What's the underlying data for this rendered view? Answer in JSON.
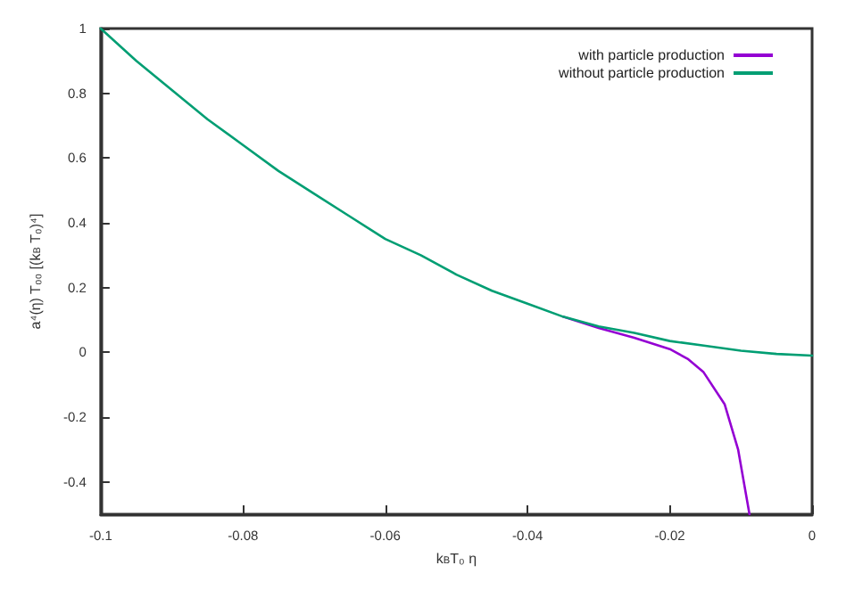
{
  "chart_data": {
    "type": "line",
    "xlabel": "k$_{B}$T₀ η",
    "ylabel": "a⁴(η) T₀₀ [(k$_{B}$ T₀)⁴]",
    "xlim": [
      -0.1,
      0
    ],
    "xticks": [
      -0.1,
      -0.08,
      -0.06,
      -0.04,
      -0.02,
      0
    ],
    "ylim": [
      -0.5,
      1
    ],
    "yticks": [
      -0.4,
      -0.2,
      0,
      0.2,
      0.4,
      0.6,
      0.8,
      1
    ],
    "grid": false,
    "legend": "top right",
    "marker": "none",
    "line_style": "solid",
    "series": [
      {
        "name": "with particle production",
        "color": "#9400d3",
        "x": [
          -0.035,
          -0.03,
          -0.025,
          -0.02,
          -0.0175,
          -0.0153,
          -0.0123,
          -0.0104,
          -0.0088
        ],
        "values": [
          0.11,
          0.075,
          0.045,
          0.01,
          -0.02,
          -0.06,
          -0.16,
          -0.3,
          -0.5
        ]
      },
      {
        "name": "without particle production",
        "color": "#009e73",
        "x": [
          -0.1,
          -0.095,
          -0.09,
          -0.085,
          -0.08,
          -0.075,
          -0.07,
          -0.065,
          -0.06,
          -0.055,
          -0.05,
          -0.045,
          -0.04,
          -0.035,
          -0.03,
          -0.025,
          -0.02,
          -0.015,
          -0.01,
          -0.005,
          0
        ],
        "values": [
          1,
          0.9,
          0.81,
          0.72,
          0.64,
          0.56,
          0.49,
          0.42,
          0.35,
          0.3,
          0.24,
          0.19,
          0.15,
          0.11,
          0.08,
          0.06,
          0.035,
          0.02,
          0.005,
          -0.005,
          -0.01
        ]
      }
    ]
  }
}
